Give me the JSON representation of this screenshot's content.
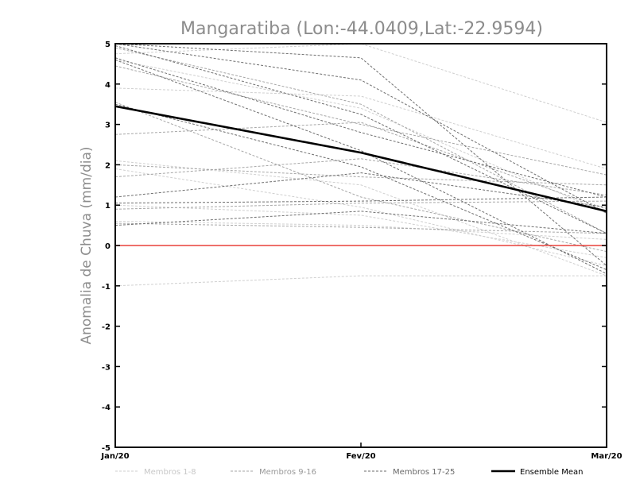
{
  "chart_data": {
    "type": "line",
    "title": "Mangaratiba (Lon:-44.0409,Lat:-22.9594)",
    "xlabel": "",
    "ylabel": "Anomalia de Chuva (mm/dia)",
    "categories": [
      "Jan/20",
      "Fev/20",
      "Mar/20"
    ],
    "y_ticks": [
      "5",
      "4",
      "3",
      "2",
      "1",
      "0",
      "-1",
      "-2",
      "-3",
      "-4",
      "-5"
    ],
    "ylim": [
      -5,
      5
    ],
    "grid": false,
    "legend_position": "bottom",
    "zero_line_color": "#e8413a",
    "groups": [
      {
        "name": "Membros 1-8",
        "color": "#cfcfcf"
      },
      {
        "name": "Membros 9-16",
        "color": "#a6a6a6"
      },
      {
        "name": "Membros 17-25",
        "color": "#6e6e6e"
      },
      {
        "name": "Ensemble Mean",
        "color": "#000000"
      }
    ],
    "series": [
      {
        "group": 0,
        "values": [
          4.75,
          5.0,
          3.05
        ]
      },
      {
        "group": 0,
        "values": [
          4.6,
          3.4,
          0.8
        ]
      },
      {
        "group": 0,
        "values": [
          3.9,
          3.7,
          1.9
        ]
      },
      {
        "group": 0,
        "values": [
          2.1,
          1.5,
          -0.75
        ]
      },
      {
        "group": 0,
        "values": [
          1.9,
          0.95,
          -0.5
        ]
      },
      {
        "group": 0,
        "values": [
          1.0,
          0.75,
          -0.3
        ]
      },
      {
        "group": 0,
        "values": [
          0.6,
          0.5,
          0.15
        ]
      },
      {
        "group": 0,
        "values": [
          -1.0,
          -0.75,
          -0.75
        ]
      },
      {
        "group": 1,
        "values": [
          4.9,
          3.5,
          0.3
        ]
      },
      {
        "group": 1,
        "values": [
          4.45,
          3.0,
          1.75
        ]
      },
      {
        "group": 1,
        "values": [
          2.75,
          3.05,
          0.9
        ]
      },
      {
        "group": 1,
        "values": [
          2.0,
          1.7,
          1.5
        ]
      },
      {
        "group": 1,
        "values": [
          1.7,
          2.15,
          1.25
        ]
      },
      {
        "group": 1,
        "values": [
          0.9,
          1.05,
          1.1
        ]
      },
      {
        "group": 1,
        "values": [
          0.55,
          0.45,
          0.3
        ]
      },
      {
        "group": 1,
        "values": [
          3.55,
          1.2,
          -0.15
        ]
      },
      {
        "group": 2,
        "values": [
          5.0,
          4.1,
          0.8
        ]
      },
      {
        "group": 2,
        "values": [
          4.95,
          3.25,
          0.3
        ]
      },
      {
        "group": 2,
        "values": [
          4.65,
          2.8,
          1.2
        ]
      },
      {
        "group": 2,
        "values": [
          5.1,
          4.65,
          -0.5
        ]
      },
      {
        "group": 2,
        "values": [
          4.6,
          2.35,
          -0.7
        ]
      },
      {
        "group": 2,
        "values": [
          1.2,
          1.8,
          0.95
        ]
      },
      {
        "group": 2,
        "values": [
          0.5,
          0.85,
          0.3
        ]
      },
      {
        "group": 2,
        "values": [
          1.05,
          1.1,
          1.2
        ]
      },
      {
        "group": 2,
        "values": [
          3.5,
          1.95,
          -0.6
        ]
      }
    ],
    "ensemble_mean": [
      3.45,
      2.3,
      0.85
    ]
  }
}
